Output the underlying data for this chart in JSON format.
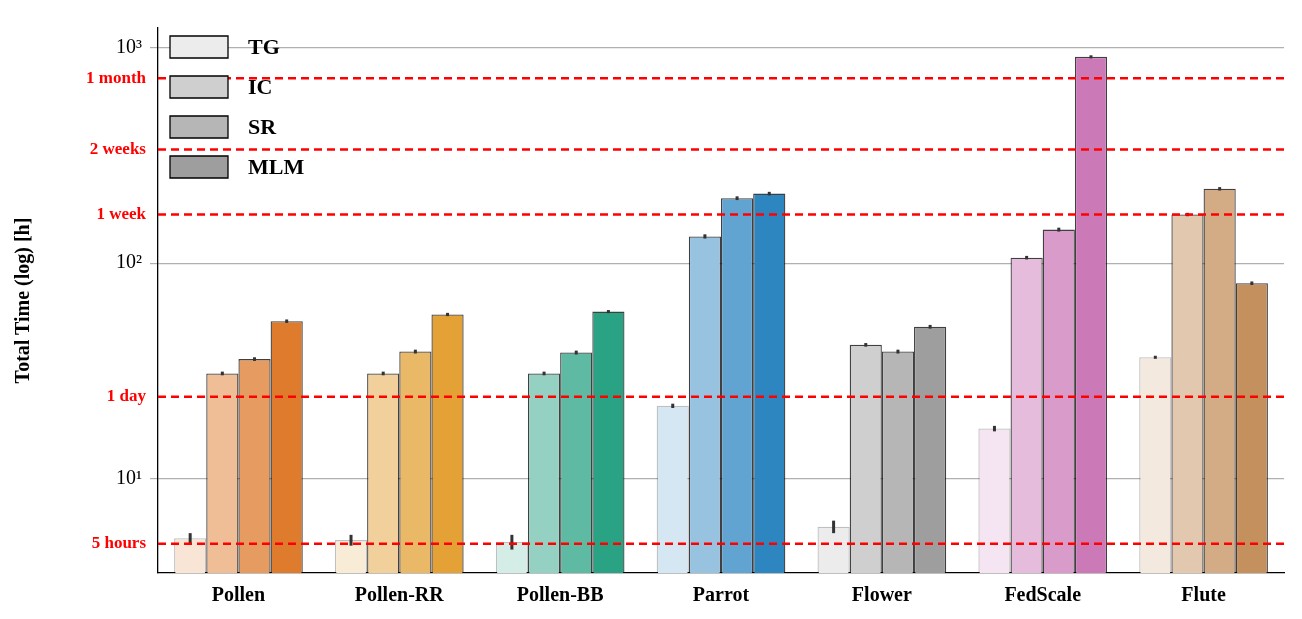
{
  "chart_data": {
    "type": "bar",
    "ylabel": "Total Time (log) [h]",
    "categories": [
      "Pollen",
      "Pollen-RR",
      "Pollen-BB",
      "Parrot",
      "Flower",
      "FedScale",
      "Flute"
    ],
    "series": [
      {
        "name": "TG",
        "color": "#ececec",
        "values": [
          5.3,
          5.2,
          5.1,
          21.8,
          6.0,
          17.1,
          36.6
        ],
        "errors": [
          0.3,
          0.3,
          0.4,
          0.5,
          0.4,
          0.5,
          0.6
        ],
        "colors": [
          "#f8e5d5",
          "#f9ecd7",
          "#d4ede7",
          "#d5e7f3",
          "#ececec",
          "#f5e4f1",
          "#f3e9df"
        ]
      },
      {
        "name": "IC",
        "color": "#cfcfcf",
        "values": [
          30.8,
          30.8,
          30.8,
          133,
          41.8,
          106,
          168
        ],
        "errors": [
          0.6,
          0.6,
          0.6,
          3,
          0.8,
          2,
          3
        ],
        "colors": [
          "#efbd96",
          "#f1d09b",
          "#95d1c2",
          "#97c3e0",
          "#cfcfcf",
          "#e6bcdc",
          "#e2c8af"
        ]
      },
      {
        "name": "SR",
        "color": "#b6b6b6",
        "values": [
          35.9,
          38.9,
          38.5,
          200,
          38.9,
          143,
          221
        ],
        "errors": [
          0.7,
          0.8,
          0.8,
          4,
          0.8,
          3,
          4
        ],
        "colors": [
          "#e69c61",
          "#eab968",
          "#5fbaa4",
          "#62a4d1",
          "#b6b6b6",
          "#d99bca",
          "#d3ac86"
        ]
      },
      {
        "name": "MLM",
        "color": "#9e9e9e",
        "values": [
          53.8,
          57.8,
          59.6,
          210,
          50.7,
          904,
          80.7
        ],
        "errors": [
          1,
          1,
          1,
          4,
          1,
          15,
          1.5
        ],
        "colors": [
          "#de7b2c",
          "#e3a136",
          "#2aa385",
          "#2e86c1",
          "#9e9e9e",
          "#cc79b8",
          "#c4915e"
        ]
      }
    ],
    "log": true,
    "ylim": [
      3.66,
      1230
    ],
    "yticks": [
      {
        "value": 10,
        "label": "10¹"
      },
      {
        "value": 100,
        "label": "10²"
      },
      {
        "value": 1000,
        "label": "10³"
      }
    ],
    "grid": "y",
    "legend": "top left",
    "ref_lines": [
      {
        "axis": "y",
        "value": 5,
        "label": "5 hours",
        "color": "#ff0000",
        "line_style": "dashed"
      },
      {
        "axis": "y",
        "value": 24,
        "label": "1 day",
        "color": "#ff0000",
        "line_style": "dashed"
      },
      {
        "axis": "y",
        "value": 168,
        "label": "1 week",
        "color": "#ff0000",
        "line_style": "dashed"
      },
      {
        "axis": "y",
        "value": 336,
        "label": "2 weeks",
        "color": "#ff0000",
        "line_style": "dashed"
      },
      {
        "axis": "y",
        "value": 720,
        "label": "1 month",
        "color": "#ff0000",
        "line_style": "dashed"
      }
    ]
  }
}
